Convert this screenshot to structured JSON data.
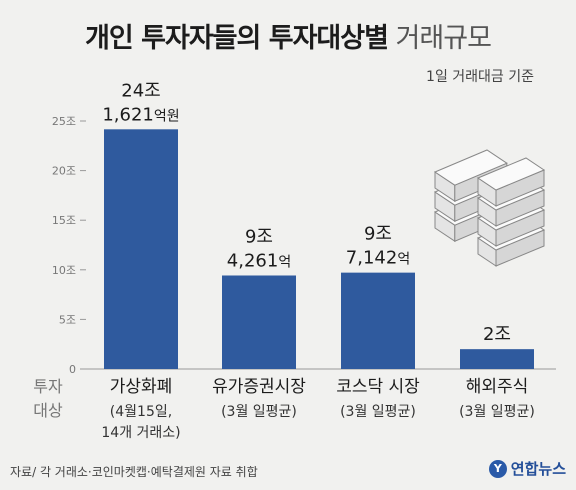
{
  "title": {
    "bold": "개인 투자자들의 투자대상별",
    "light": "거래규모"
  },
  "subtitle": "1일 거래대금 기준",
  "y_axis_label": [
    "투자",
    "대상"
  ],
  "source": "자료/ 각 거래소·코인마켓캡·예탁결제원 자료 취합",
  "logo": {
    "mark": "Y",
    "text": "연합뉴스"
  },
  "icon": "money-stack-icon",
  "colors": {
    "bar": "#2f5a9e",
    "background": "#f1f1ef",
    "axis": "#999999"
  },
  "chart_data": {
    "type": "bar",
    "categories": [
      "가상화폐",
      "유가증권시장",
      "코스닥 시장",
      "해외주식"
    ],
    "category_notes": [
      [
        "(4월15일,",
        "14개 거래소)"
      ],
      [
        "(3월 일평균)"
      ],
      [
        "(3월 일평균)"
      ],
      [
        "(3월 일평균)"
      ]
    ],
    "values": [
      24.1621,
      9.4261,
      9.7142,
      2
    ],
    "data_labels": [
      {
        "main": "24조",
        "sub": "1,621",
        "sub_unit": "억원"
      },
      {
        "main": "9조",
        "sub": "4,261",
        "sub_unit": "억"
      },
      {
        "main": "9조",
        "sub": "7,142",
        "sub_unit": "억"
      },
      {
        "main": "2조",
        "sub": "",
        "sub_unit": ""
      }
    ],
    "yticks": [
      0,
      5,
      10,
      15,
      20,
      25
    ],
    "ytick_labels": [
      "0",
      "5조",
      "10조",
      "15조",
      "20조",
      "25조"
    ],
    "ylim": [
      0,
      25
    ],
    "grid": false
  }
}
